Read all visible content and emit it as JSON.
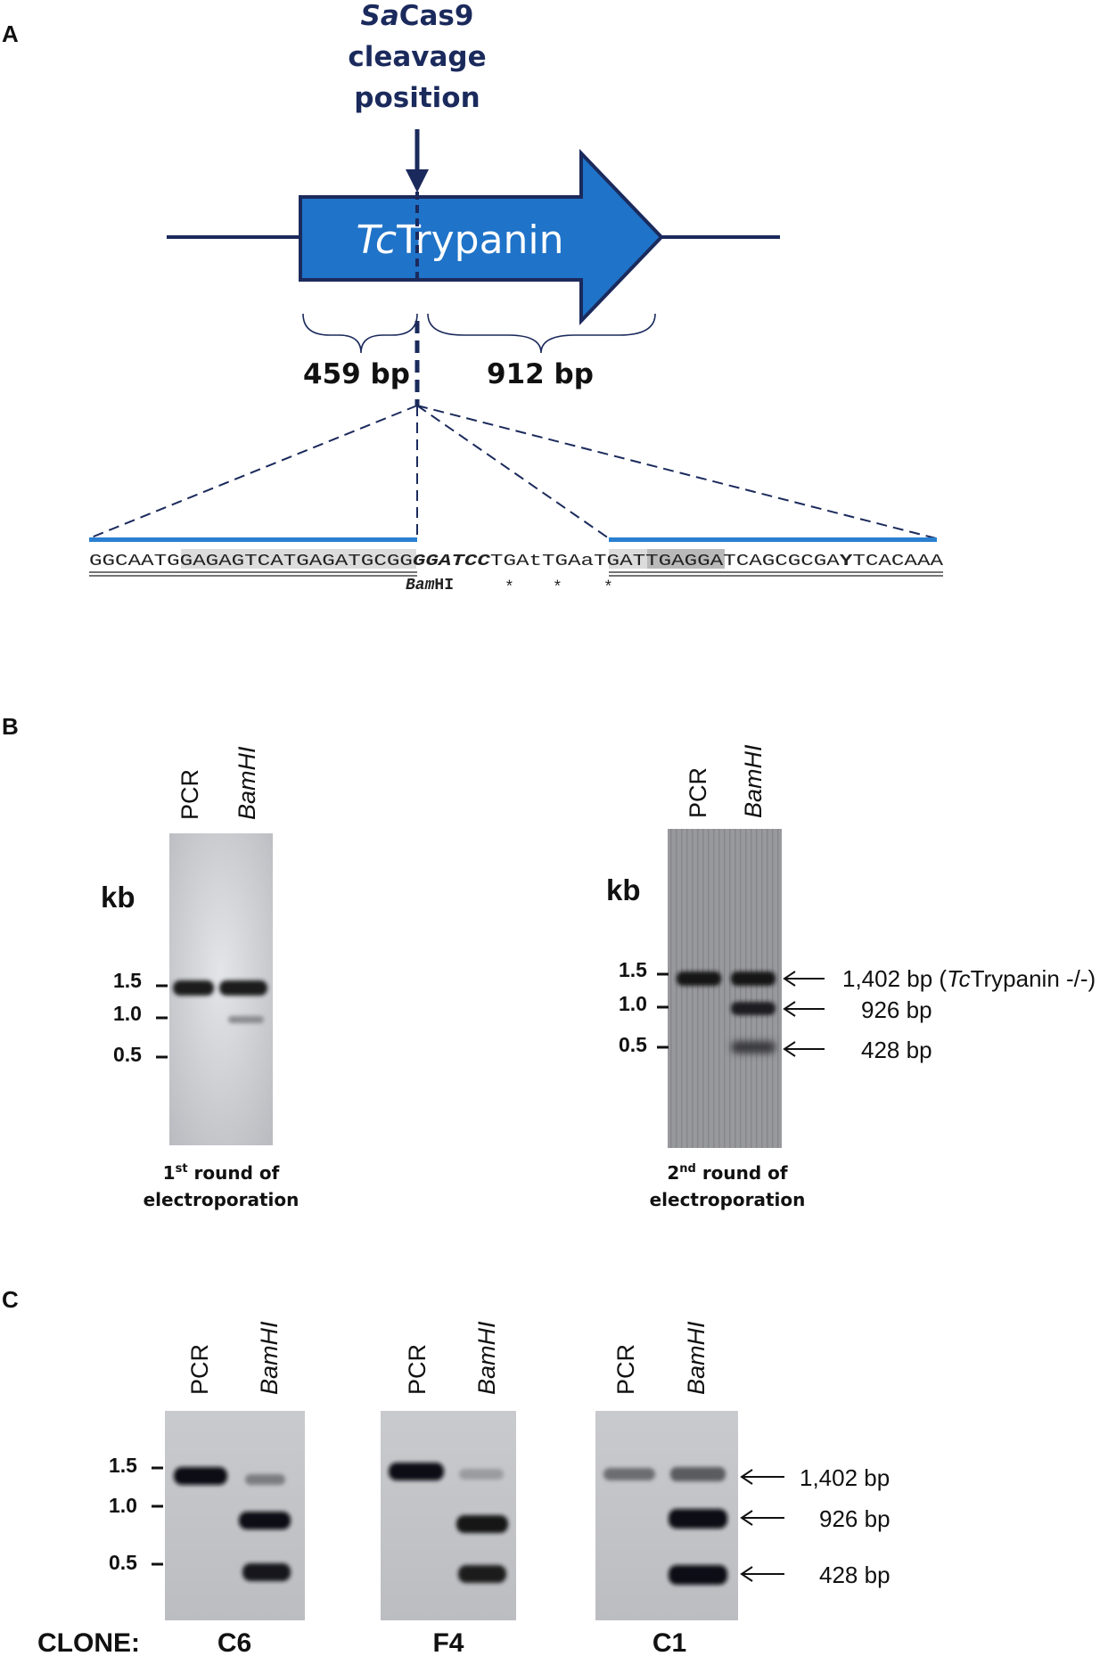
{
  "panel_a": {
    "label": "A",
    "cleavage_line1_italic": "Sa",
    "cleavage_line1_rest": "Cas9",
    "cleavage_line2": "cleavage",
    "cleavage_line3": "position",
    "gene_italic": "Tc",
    "gene_rest": "Trypanin",
    "left_size": "459 bp",
    "right_size": "912 bp",
    "sequence": {
      "part1": "GGCAATGGAGAGTCATGAGATGCGG",
      "site": "GGATCC",
      "part2": "TGAtTGAaTGATTGAGGATCAGCGCGA",
      "y_code": "Y",
      "part3": "TCACAAA",
      "enzyme_italic": "Bam",
      "enzyme_rest": "HI",
      "star1": "*",
      "star2": "*",
      "star3": "*"
    }
  },
  "panel_b": {
    "label": "B",
    "left_gel": {
      "lane1": "PCR",
      "lane2": "BamHI",
      "kb": "kb",
      "ticks": [
        "1.5",
        "1.0",
        "0.5"
      ],
      "caption_pre": "1",
      "caption_sup": "st",
      "caption_post": " round of",
      "caption_line2": "electroporation"
    },
    "right_gel": {
      "lane1": "PCR",
      "lane2": "BamHI",
      "kb": "kb",
      "ticks": [
        "1.5",
        "1.0",
        "0.5"
      ],
      "caption_pre": "2",
      "caption_sup": "nd",
      "caption_post": " round of",
      "caption_line2": "electroporation",
      "band1_pre": "1,402 bp (",
      "band1_italic": "Tc",
      "band1_post": "Trypanin -/-)",
      "band2": "926 bp",
      "band3": "428 bp"
    }
  },
  "panel_c": {
    "label": "C",
    "ticks": [
      "1.5",
      "1.0",
      "0.5"
    ],
    "clone_prefix": "CLONE:",
    "clones": [
      {
        "name": "C6",
        "lane1": "PCR",
        "lane2": "BamHI"
      },
      {
        "name": "F4",
        "lane1": "PCR",
        "lane2": "BamHI"
      },
      {
        "name": "C1",
        "lane1": "PCR",
        "lane2": "BamHI"
      }
    ],
    "bands": [
      "1,402 bp",
      "926 bp",
      "428 bp"
    ]
  },
  "colors": {
    "navy": "#1b2a5c",
    "arrow_blue": "#1f73c8",
    "line_blue": "#2a7fd0",
    "highlight": "#dcdcdc",
    "highlight_dark": "#b9b9b9"
  }
}
